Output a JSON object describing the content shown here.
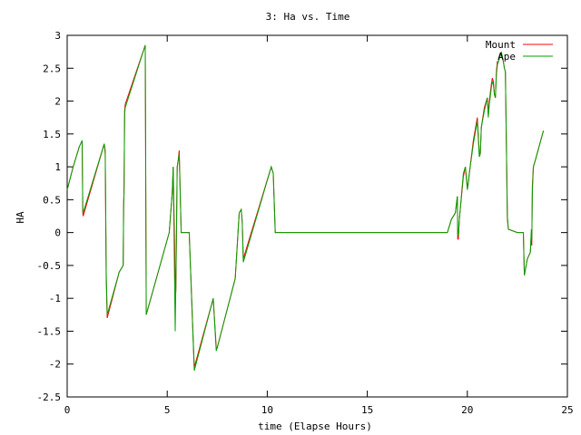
{
  "chart_data": {
    "type": "line",
    "title": "3: Ha vs. Time",
    "xlabel": "time (Elapse Hours)",
    "ylabel": "HA",
    "xlim": [
      0,
      25
    ],
    "ylim": [
      -2.5,
      3
    ],
    "xticks": [
      "0",
      "5",
      "10",
      "15",
      "20",
      "25"
    ],
    "yticks": [
      "-2.5",
      "-2",
      "-1.5",
      "-1",
      "-0.5",
      "0",
      "0.5",
      "1",
      "1.5",
      "2",
      "2.5",
      "3"
    ],
    "grid": false,
    "legend_position": "top-right",
    "series": [
      {
        "name": "Mount",
        "color": "#ff0000",
        "x": [
          0,
          0.3,
          0.6,
          0.75,
          0.78,
          0.8,
          1.85,
          1.9,
          1.95,
          2.0,
          2.6,
          2.8,
          2.82,
          2.84,
          2.87,
          2.9,
          3.9,
          3.95,
          5.1,
          5.25,
          5.3,
          5.4,
          5.43,
          5.5,
          5.55,
          5.6,
          5.7,
          6.1,
          6.35,
          7.3,
          7.45,
          7.5,
          8.4,
          8.6,
          8.7,
          8.75,
          8.8,
          10.2,
          10.3,
          10.4,
          19.0,
          19.2,
          19.4,
          19.5,
          19.52,
          19.55,
          19.6,
          19.8,
          19.9,
          20.0,
          20.05,
          20.1,
          20.3,
          20.5,
          20.6,
          20.65,
          20.7,
          20.85,
          21.0,
          21.05,
          21.1,
          21.2,
          21.25,
          21.3,
          21.35,
          21.4,
          21.45,
          21.5,
          21.55,
          21.6,
          21.65,
          21.7,
          21.8,
          21.85,
          21.9,
          22.0,
          22.05,
          22.5,
          22.8,
          22.85,
          23.0,
          23.15,
          23.2,
          23.22,
          23.25,
          23.3,
          23.4,
          23.8
        ],
        "y": [
          0.65,
          1.0,
          1.3,
          1.4,
          0.3,
          0.25,
          1.35,
          1.2,
          -0.7,
          -1.3,
          -0.6,
          -0.5,
          0.4,
          0.6,
          1.85,
          1.95,
          2.85,
          -1.25,
          0.0,
          0.6,
          1.0,
          -0.7,
          -0.9,
          1.0,
          1.1,
          1.25,
          0.0,
          0.0,
          -2.05,
          -1.0,
          -1.75,
          -1.75,
          -0.7,
          0.3,
          0.35,
          0.15,
          -0.4,
          1.0,
          0.9,
          0.0,
          0.0,
          0.2,
          0.3,
          0.55,
          -0.1,
          -0.1,
          0.2,
          0.85,
          1.0,
          0.7,
          0.75,
          0.9,
          1.4,
          1.75,
          1.2,
          1.2,
          1.6,
          1.9,
          2.05,
          1.8,
          2.0,
          2.25,
          2.35,
          2.3,
          2.1,
          2.05,
          2.45,
          2.6,
          2.6,
          2.65,
          2.7,
          2.7,
          2.6,
          2.5,
          2.45,
          0.2,
          0.05,
          0.0,
          0.0,
          -0.65,
          -0.4,
          -0.3,
          0.0,
          -0.2,
          0.7,
          1.0,
          1.1,
          1.55
        ]
      },
      {
        "name": "Ape",
        "color": "#00a000",
        "x": [
          0,
          0.3,
          0.6,
          0.75,
          0.78,
          0.8,
          1.85,
          1.9,
          1.95,
          2.0,
          2.6,
          2.8,
          2.82,
          2.84,
          2.87,
          2.9,
          3.9,
          3.95,
          5.1,
          5.25,
          5.3,
          5.4,
          5.43,
          5.5,
          5.55,
          5.6,
          5.7,
          6.1,
          6.35,
          7.3,
          7.45,
          7.5,
          8.4,
          8.6,
          8.7,
          8.75,
          8.8,
          10.2,
          10.3,
          10.4,
          19.0,
          19.2,
          19.4,
          19.5,
          19.52,
          19.55,
          19.6,
          19.8,
          19.9,
          20.0,
          20.05,
          20.1,
          20.3,
          20.5,
          20.6,
          20.65,
          20.7,
          20.85,
          21.0,
          21.05,
          21.1,
          21.2,
          21.25,
          21.3,
          21.35,
          21.4,
          21.45,
          21.5,
          21.55,
          21.6,
          21.65,
          21.7,
          21.8,
          21.85,
          21.9,
          22.0,
          22.05,
          22.5,
          22.8,
          22.85,
          23.0,
          23.15,
          23.2,
          23.22,
          23.25,
          23.3,
          23.4,
          23.8
        ],
        "y": [
          0.65,
          1.0,
          1.3,
          1.4,
          0.35,
          0.3,
          1.35,
          1.25,
          -0.6,
          -1.25,
          -0.6,
          -0.5,
          0.45,
          0.6,
          1.8,
          1.9,
          2.85,
          -1.25,
          0.0,
          0.6,
          1.0,
          -1.5,
          -0.8,
          1.0,
          1.1,
          1.2,
          0.0,
          0.0,
          -2.1,
          -1.0,
          -1.8,
          -1.75,
          -0.7,
          0.3,
          0.35,
          0.15,
          -0.45,
          1.0,
          0.9,
          0.0,
          0.0,
          0.2,
          0.3,
          0.55,
          0.0,
          -0.05,
          0.2,
          0.9,
          1.0,
          0.65,
          0.75,
          0.9,
          1.35,
          1.7,
          1.15,
          1.2,
          1.6,
          1.85,
          2.05,
          1.75,
          1.95,
          2.2,
          2.3,
          2.25,
          2.1,
          2.05,
          2.4,
          2.55,
          2.6,
          2.65,
          2.7,
          2.75,
          2.6,
          2.5,
          2.45,
          0.25,
          0.05,
          0.0,
          0.0,
          -0.65,
          -0.4,
          -0.3,
          0.05,
          -0.1,
          0.6,
          1.0,
          1.1,
          1.55
        ]
      }
    ]
  }
}
